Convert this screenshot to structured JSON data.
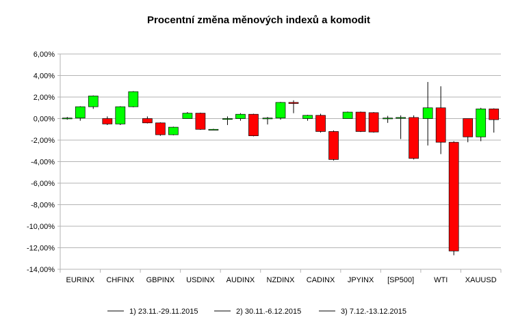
{
  "chart_data": {
    "type": "candlestick",
    "title": "Procentní změna měnových indexů a komodit",
    "xlabel": "",
    "ylabel": "",
    "ylim": [
      -14,
      6
    ],
    "ytick_step": 2,
    "ytick_labels": [
      "6,00%",
      "4,00%",
      "2,00%",
      "0,00%",
      "-2,00%",
      "-4,00%",
      "-6,00%",
      "-8,00%",
      "-10,00%",
      "-12,00%",
      "-14,00%"
    ],
    "grid": true,
    "legend_position": "bottom",
    "up_color": "#00ff00",
    "down_color": "#ff0000",
    "wick_color": "#000000",
    "categories": [
      "EURINX",
      "CHFINX",
      "GBPINX",
      "USDINX",
      "AUDINX",
      "NZDINX",
      "CADINX",
      "JPYINX",
      "[SP500]",
      "WTI",
      "XAUUSD"
    ],
    "series": [
      {
        "name": "1) 23.11.-29.11.2015",
        "candles": [
          {
            "open": 0.0,
            "close": 0.05,
            "high": 0.15,
            "low": -0.1
          },
          {
            "open": 0.0,
            "close": -0.5,
            "high": 0.2,
            "low": -0.6
          },
          {
            "open": 0.0,
            "close": -0.4,
            "high": 0.2,
            "low": -0.45
          },
          {
            "open": 0.0,
            "close": 0.5,
            "high": 0.6,
            "low": 0.0
          },
          {
            "open": 0.0,
            "close": 0.0,
            "high": 0.2,
            "low": -0.6
          },
          {
            "open": 0.0,
            "close": 0.05,
            "high": 0.15,
            "low": -0.55
          },
          {
            "open": 0.0,
            "close": 0.3,
            "high": 0.35,
            "low": -0.2
          },
          {
            "open": 0.0,
            "close": 0.6,
            "high": 0.65,
            "low": 0.0
          },
          {
            "open": 0.0,
            "close": 0.05,
            "high": 0.25,
            "low": -0.4
          },
          {
            "open": 0.0,
            "close": 1.0,
            "high": 3.4,
            "low": -2.5
          },
          {
            "open": 0.0,
            "close": -1.7,
            "high": 0.0,
            "low": -2.2
          }
        ]
      },
      {
        "name": "2) 30.11.-6.12.2015",
        "candles": [
          {
            "open": 0.05,
            "close": 1.1,
            "high": 1.15,
            "low": -0.2
          },
          {
            "open": -0.5,
            "close": 1.1,
            "high": 1.15,
            "low": -0.6
          },
          {
            "open": -0.4,
            "close": -1.5,
            "high": -0.35,
            "low": -1.6
          },
          {
            "open": 0.5,
            "close": -1.0,
            "high": 0.55,
            "low": -1.05
          },
          {
            "open": 0.0,
            "close": 0.4,
            "high": 0.5,
            "low": -0.2
          },
          {
            "open": 0.05,
            "close": 1.5,
            "high": 1.55,
            "low": -0.1
          },
          {
            "open": 0.3,
            "close": -1.2,
            "high": 0.45,
            "low": -1.3
          },
          {
            "open": 0.6,
            "close": -1.2,
            "high": 0.65,
            "low": -1.25
          },
          {
            "open": 0.05,
            "close": 0.1,
            "high": 0.3,
            "low": -1.9
          },
          {
            "open": 1.0,
            "close": -2.2,
            "high": 3.0,
            "low": -3.3
          },
          {
            "open": -1.7,
            "close": 0.9,
            "high": 1.0,
            "low": -2.1
          }
        ]
      },
      {
        "name": "3) 7.12.-13.12.2015",
        "candles": [
          {
            "open": 1.1,
            "close": 2.1,
            "high": 2.15,
            "low": 0.9
          },
          {
            "open": 1.1,
            "close": 2.5,
            "high": 2.55,
            "low": 1.05
          },
          {
            "open": -1.5,
            "close": -0.8,
            "high": -0.75,
            "low": -1.55
          },
          {
            "open": -1.0,
            "close": -1.0,
            "high": -0.95,
            "low": -1.05
          },
          {
            "open": 0.4,
            "close": -1.6,
            "high": 0.45,
            "low": -1.65
          },
          {
            "open": 1.5,
            "close": 1.4,
            "high": 1.7,
            "low": 0.5
          },
          {
            "open": -1.2,
            "close": -3.8,
            "high": -1.1,
            "low": -3.9
          },
          {
            "open": 0.55,
            "close": -1.25,
            "high": 0.6,
            "low": -1.3
          },
          {
            "open": 0.1,
            "close": -3.7,
            "high": 0.3,
            "low": -3.8
          },
          {
            "open": -2.2,
            "close": -12.3,
            "high": -2.1,
            "low": -12.7
          },
          {
            "open": 0.9,
            "close": -0.1,
            "high": 0.95,
            "low": -1.3
          }
        ]
      }
    ]
  }
}
